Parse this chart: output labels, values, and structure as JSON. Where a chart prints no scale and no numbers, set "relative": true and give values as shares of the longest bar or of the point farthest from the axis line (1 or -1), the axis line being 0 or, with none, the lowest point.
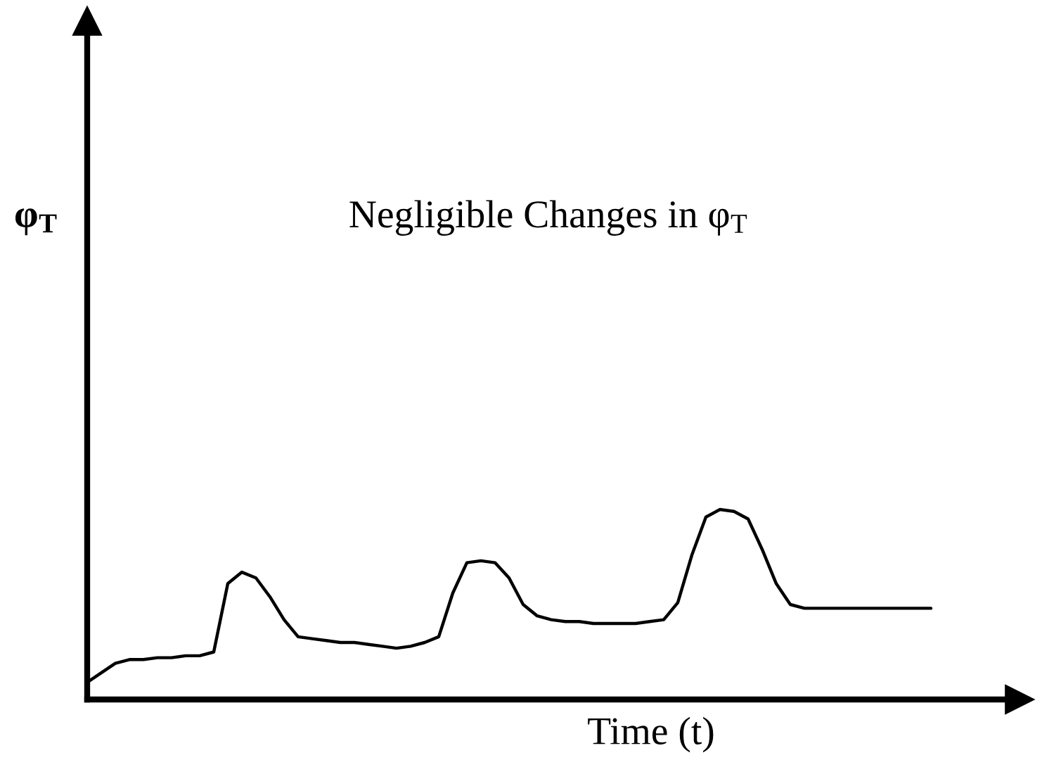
{
  "chart_data": {
    "type": "line",
    "relative": true,
    "title": "Negligible Changes in φ$_{T}$",
    "annotations": [
      "φ$_{T}$"
    ],
    "xlabel": "Time (t)",
    "categories": [
      null,
      null,
      null,
      null,
      null,
      null,
      null,
      null,
      null,
      null,
      null,
      null,
      null,
      null,
      null,
      null,
      null,
      null,
      null,
      null,
      null,
      null,
      null,
      null,
      null,
      null,
      null,
      null,
      null,
      null,
      null,
      null,
      null,
      null,
      null,
      null,
      null,
      null,
      null,
      null,
      null,
      null,
      null,
      null,
      null,
      null,
      null,
      null,
      null,
      null,
      null,
      null,
      null,
      null,
      null,
      null,
      null,
      null,
      null,
      null,
      null
    ],
    "series": [
      {
        "color": "#000000",
        "values": [
          0.09,
          0.14,
          0.19,
          0.21,
          0.21,
          0.22,
          0.22,
          0.23,
          0.23,
          0.25,
          0.61,
          0.67,
          0.64,
          0.54,
          0.42,
          0.33,
          0.32,
          0.31,
          0.3,
          0.3,
          0.29,
          0.28,
          0.27,
          0.28,
          0.3,
          0.33,
          0.56,
          0.72,
          0.73,
          0.72,
          0.64,
          0.5,
          0.44,
          0.42,
          0.41,
          0.41,
          0.4,
          0.4,
          0.4,
          0.4,
          0.41,
          0.42,
          0.51,
          0.76,
          0.96,
          1,
          0.99,
          0.95,
          0.79,
          0.61,
          0.5,
          0.48,
          0.48,
          0.48,
          0.48,
          0.48,
          0.48,
          0.48,
          0.48,
          0.48,
          0.48
        ]
      }
    ],
    "grid": false,
    "legend": false
  }
}
